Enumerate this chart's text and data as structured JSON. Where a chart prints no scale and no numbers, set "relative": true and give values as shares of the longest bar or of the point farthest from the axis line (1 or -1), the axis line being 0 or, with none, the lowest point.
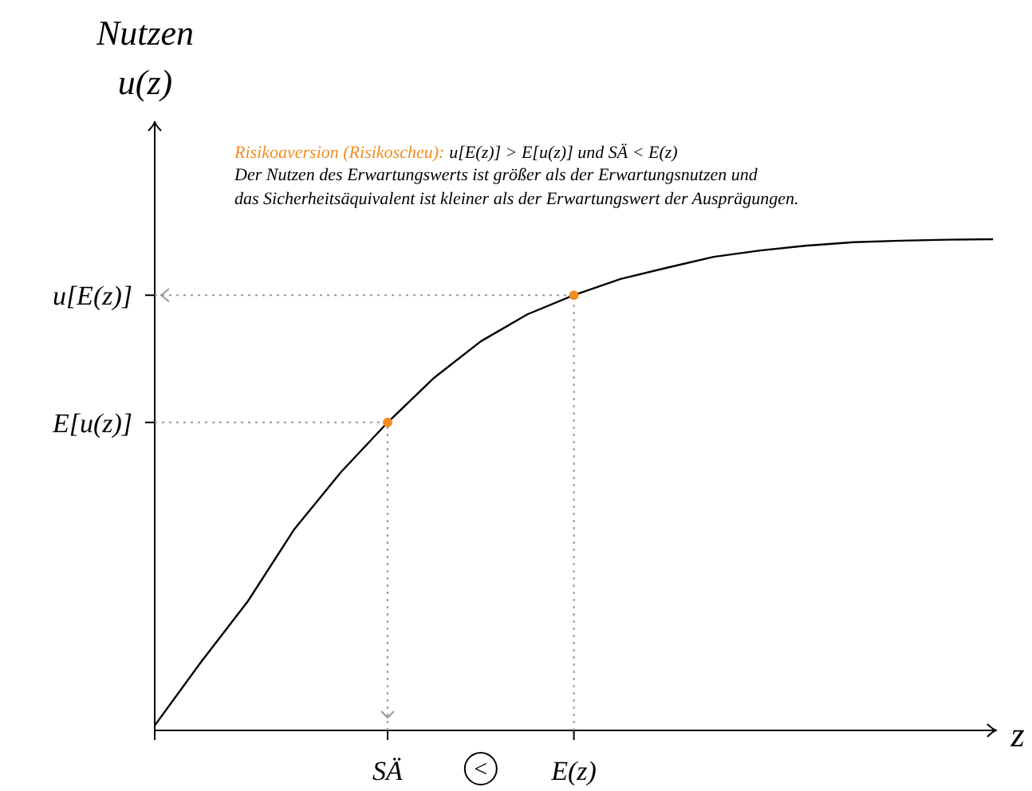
{
  "chart_data": {
    "type": "line",
    "relative": true,
    "title": "Risikoaversion (Risikoscheu):",
    "ylabel": "Nutzen u(z)",
    "xlabel": "z",
    "categories": [
      null,
      null,
      null,
      null,
      null,
      "SÄ",
      null,
      null,
      null,
      "E(z)",
      null,
      null,
      null,
      null,
      null,
      null,
      null,
      null,
      null
    ],
    "annotations": [
      "u[E(z)] > E[u(z)] und SÄ < E(z)",
      "Der Nutzen des Erwartungswerts ist größer als der Erwartungsnutzen und",
      "das Sicherheitsäquivalent ist kleiner als der Erwartungswert der Ausprägungen.",
      "<"
    ],
    "series": [
      {
        "color": "#000000",
        "values": [
          0.01,
          0.14,
          0.263,
          0.41,
          0.526,
          0.627,
          0.718,
          0.792,
          0.847,
          0.886,
          0.919,
          0.942,
          0.964,
          0.977,
          0.987,
          0.994,
          0.997,
          0.999,
          1
        ]
      },
      {
        "type": "scatter",
        "color": "#f28c1e",
        "x": [
          "SÄ",
          "E(z)"
        ],
        "values": [
          0.627,
          0.886
        ],
        "marker": "circle"
      }
    ],
    "ref_lines": [
      {
        "axis": "y",
        "value": 0.886,
        "label": "u[E(z)]",
        "color": "#999999",
        "line_style": "dotted"
      },
      {
        "axis": "y",
        "value": 0.627,
        "label": "E[u(z)]",
        "color": "#999999",
        "line_style": "dotted"
      }
    ]
  }
}
